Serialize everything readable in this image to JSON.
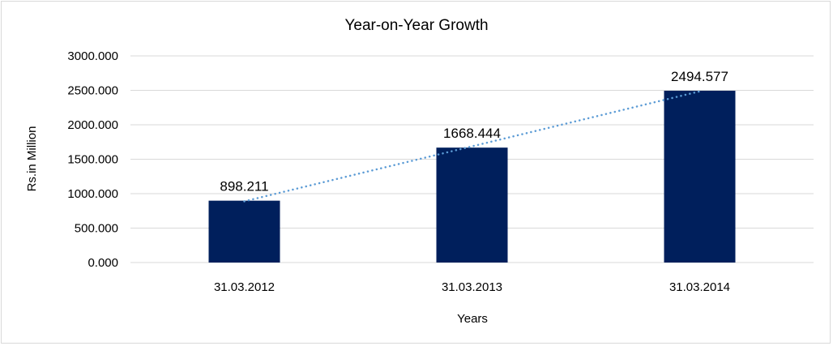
{
  "chart_data": {
    "type": "bar",
    "title": "Year-on-Year Growth",
    "xlabel": "Years",
    "ylabel": "Rs.in Million",
    "categories": [
      "31.03.2012",
      "31.03.2013",
      "31.03.2014"
    ],
    "values": [
      898.211,
      1668.444,
      2494.577
    ],
    "data_labels": [
      "898.211",
      "1668.444",
      "2494.577"
    ],
    "ylim": [
      0,
      3000
    ],
    "yticks": [
      0,
      500,
      1000,
      1500,
      2000,
      2500,
      3000
    ],
    "ytick_labels": [
      "0.000",
      "500.000",
      "1000.000",
      "1500.000",
      "2000.000",
      "2500.000",
      "3000.000"
    ],
    "grid": true,
    "legend": "none",
    "trendline": "linear",
    "colors": {
      "bar": "#001f5c",
      "trendline": "#5b9bd5",
      "grid": "#d9d9d9"
    }
  }
}
